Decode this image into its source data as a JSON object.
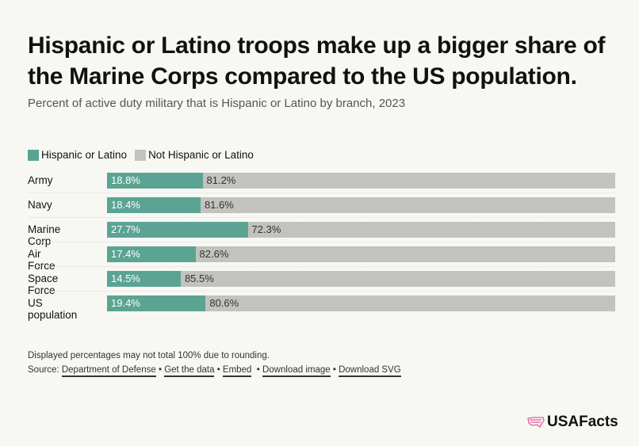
{
  "header": {
    "title": "Hispanic or Latino troops make up a bigger share of the Marine Corps compared to the US population.",
    "subtitle": "Percent of active duty military that is Hispanic or Latino by branch, 2023"
  },
  "chart_data": {
    "type": "bar",
    "stacked": true,
    "orientation": "horizontal",
    "categories": [
      "Army",
      "Navy",
      "Marine Corp",
      "Air Force",
      "Space Force",
      "US population"
    ],
    "series": [
      {
        "name": "Hispanic or Latino",
        "color": "#5ba494",
        "values": [
          18.8,
          18.4,
          27.7,
          17.4,
          14.5,
          19.4
        ]
      },
      {
        "name": "Not Hispanic or Latino",
        "color": "#c2c2bf",
        "values": [
          81.2,
          81.6,
          72.3,
          82.6,
          85.5,
          80.6
        ]
      }
    ],
    "xlim": [
      0,
      100
    ],
    "legend": "top-left",
    "grid": false
  },
  "footer": {
    "note": "Displayed percentages may not total 100% due to rounding.",
    "source_label": "Source:",
    "links": [
      "Department of Defense",
      "Get the data",
      "Embed",
      "Download image",
      "Download SVG"
    ],
    "separator": "•"
  },
  "logo": {
    "text": "USAFacts",
    "icon": "us-flag-map-icon",
    "color": "#e35d9c"
  }
}
